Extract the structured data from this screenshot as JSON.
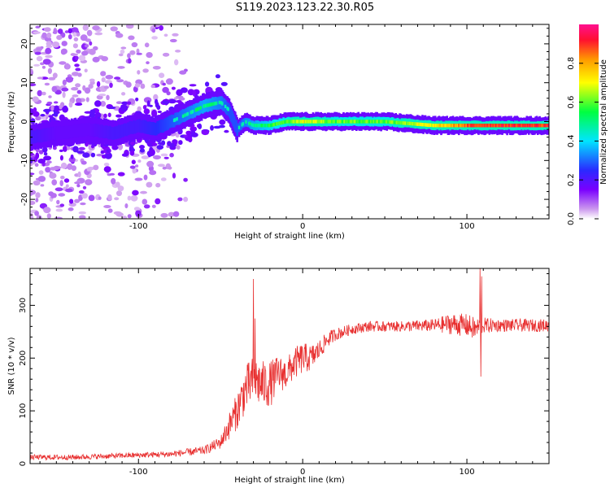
{
  "title": "S119.2023.123.22.30.R05",
  "chart_data": [
    {
      "type": "heatmap",
      "title": "",
      "xlabel": "Height of straight line (km)",
      "ylabel": "Frequency (Hz)",
      "xlim": [
        -166,
        150
      ],
      "ylim": [
        -25,
        25
      ],
      "xticks": [
        -100,
        0,
        100
      ],
      "yticks": [
        -20,
        -10,
        0,
        10,
        20
      ],
      "grid": false,
      "colorbar": {
        "label": "Normalized spectral amplitude",
        "range": [
          0,
          1
        ],
        "ticks": [
          0.0,
          0.2,
          0.4,
          0.6,
          0.8
        ],
        "colors": [
          "#ffffff",
          "#cc99ee",
          "#7a00ff",
          "#2a2aff",
          "#00e5ff",
          "#00ff40",
          "#ffff00",
          "#ff9900",
          "#ff1030",
          "#ff1090"
        ]
      },
      "ridge": {
        "x": [
          -166,
          -150,
          -130,
          -115,
          -100,
          -90,
          -80,
          -70,
          -60,
          -50,
          -45,
          -40,
          -35,
          -30,
          -20,
          -10,
          0,
          20,
          50,
          80,
          100,
          110,
          130,
          150
        ],
        "frequency": [
          -4,
          -3,
          -2,
          -3,
          -1,
          -2,
          0,
          2,
          4,
          5,
          3,
          -2,
          0,
          -1,
          -1,
          0,
          0,
          0,
          0,
          -1,
          -1,
          -1,
          -1,
          -1
        ],
        "amplitude": [
          0.3,
          0.25,
          0.25,
          0.3,
          0.3,
          0.35,
          0.4,
          0.45,
          0.5,
          0.45,
          0.4,
          0.4,
          0.45,
          0.5,
          0.55,
          0.6,
          0.7,
          0.6,
          0.6,
          0.7,
          0.85,
          0.9,
          0.9,
          0.9
        ]
      }
    },
    {
      "type": "line",
      "title": "",
      "xlabel": "Height of straight line (km)",
      "ylabel": "SNR (10 * v/v)",
      "xlim": [
        -166,
        150
      ],
      "ylim": [
        0,
        370
      ],
      "xticks": [
        -100,
        0,
        100
      ],
      "yticks": [
        0,
        100,
        200,
        300
      ],
      "grid": false,
      "line_color": "#e83030",
      "envelope": {
        "x": [
          -166,
          -140,
          -110,
          -80,
          -60,
          -50,
          -45,
          -40,
          -35,
          -30,
          -25,
          -20,
          -15,
          -10,
          -5,
          0,
          5,
          10,
          15,
          20,
          30,
          40,
          60,
          80,
          90,
          100,
          105,
          110,
          120,
          130,
          150
        ],
        "snr": [
          12,
          12,
          15,
          18,
          25,
          40,
          70,
          100,
          140,
          160,
          150,
          150,
          170,
          170,
          190,
          200,
          200,
          215,
          235,
          245,
          255,
          260,
          260,
          262,
          265,
          262,
          255,
          262,
          262,
          262,
          262
        ],
        "spread": [
          5,
          5,
          5,
          6,
          8,
          12,
          25,
          35,
          45,
          45,
          45,
          45,
          35,
          30,
          30,
          30,
          25,
          20,
          15,
          12,
          10,
          10,
          10,
          12,
          20,
          22,
          22,
          15,
          12,
          12,
          12
        ]
      },
      "spikes": [
        {
          "x": -30,
          "snr": 350
        },
        {
          "x": -29,
          "snr": 275
        },
        {
          "x": 108,
          "snr": 370
        },
        {
          "x": 109,
          "snr": 355
        },
        {
          "x": 108.5,
          "snr": 165
        }
      ]
    }
  ]
}
